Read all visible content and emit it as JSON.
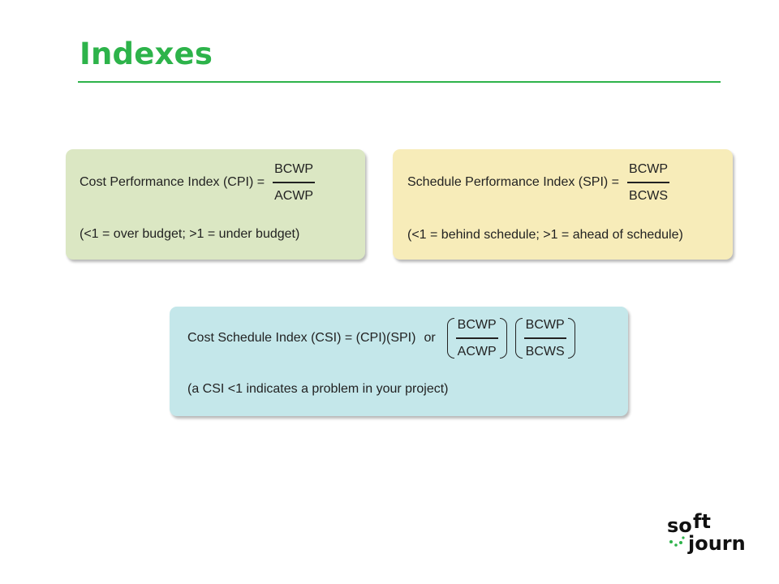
{
  "slide": {
    "title": "Indexes"
  },
  "cpi": {
    "label": "Cost Performance Index (CPI) =",
    "numerator": "BCWP",
    "denominator": "ACWP",
    "note": "(<1 = over budget;  >1 = under budget)",
    "bg_color": "#dbe7c3"
  },
  "spi": {
    "label": "Schedule Performance Index (SPI) =",
    "numerator": "BCWP",
    "denominator": "BCWS",
    "note": "(<1 = behind schedule;  >1 = ahead of schedule)",
    "bg_color": "#f7ecb9"
  },
  "csi": {
    "label": "Cost Schedule Index (CSI) = (CPI)(SPI)",
    "or_text": "or",
    "fraction1": {
      "numerator": "BCWP",
      "denominator": "ACWP"
    },
    "fraction2": {
      "numerator": "BCWP",
      "denominator": "BCWS"
    },
    "note": "(a CSI <1 indicates a problem in your project)",
    "bg_color": "#c4e7ea"
  },
  "logo": {
    "line1_a": "so",
    "line1_b": "ft",
    "line2": "journ",
    "accent_color": "#2db34a"
  },
  "colors": {
    "accent": "#2db34a",
    "text": "#222222"
  }
}
